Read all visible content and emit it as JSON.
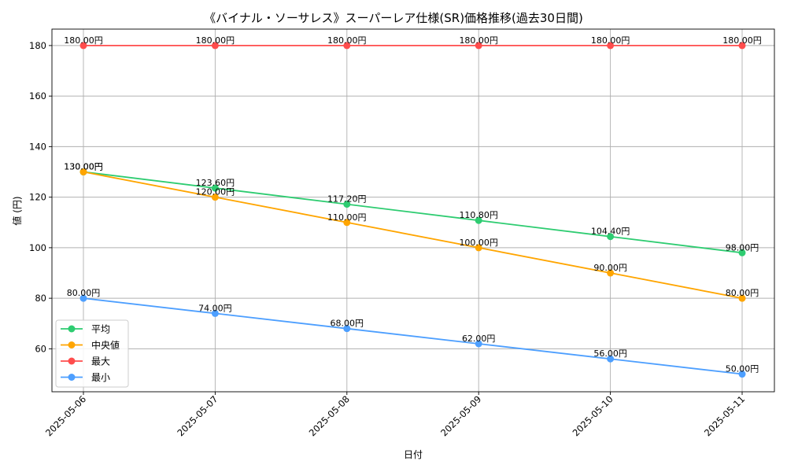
{
  "chart_data": {
    "type": "line",
    "title": "《バイナル・ソーサレス》スーパーレア仕様(SR)価格推移(過去30日間)",
    "xlabel": "日付",
    "ylabel": "値 (円)",
    "categories": [
      "2025-05-06",
      "2025-05-07",
      "2025-05-08",
      "2025-05-09",
      "2025-05-10",
      "2025-05-11"
    ],
    "ylim": [
      43,
      186.5
    ],
    "yticks": [
      60,
      80,
      100,
      120,
      140,
      160,
      180
    ],
    "grid": true,
    "legend_position": "lower-left",
    "value_suffix": "円",
    "series": [
      {
        "name": "平均",
        "color": "#2ecc71",
        "values": [
          130.0,
          123.6,
          117.2,
          110.8,
          104.4,
          98.0
        ],
        "labels": [
          "130.00円",
          "123.60円",
          "117.20円",
          "110.80円",
          "104.40円",
          "98.00円"
        ]
      },
      {
        "name": "中央値",
        "color": "#ffa500",
        "values": [
          130.0,
          120.0,
          110.0,
          100.0,
          90.0,
          80.0
        ],
        "labels": [
          "130.00円",
          "120.00円",
          "110.00円",
          "100.00円",
          "90.00円",
          "80.00円"
        ]
      },
      {
        "name": "最大",
        "color": "#ff4d4d",
        "values": [
          180.0,
          180.0,
          180.0,
          180.0,
          180.0,
          180.0
        ],
        "labels": [
          "180.00円",
          "180.00円",
          "180.00円",
          "180.00円",
          "180.00円",
          "180.00円"
        ]
      },
      {
        "name": "最小",
        "color": "#4d9fff",
        "values": [
          80.0,
          74.0,
          68.0,
          62.0,
          56.0,
          50.0
        ],
        "labels": [
          "80.00円",
          "74.00円",
          "68.00円",
          "62.00円",
          "56.00円",
          "50.00円"
        ]
      }
    ]
  }
}
